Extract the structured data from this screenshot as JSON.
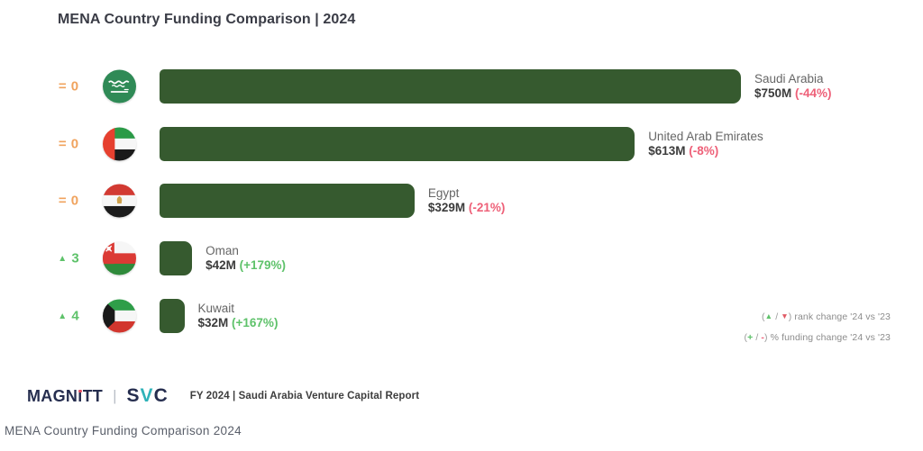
{
  "title": "MENA Country Funding Comparison | 2024",
  "chart_data": {
    "type": "bar",
    "orientation": "horizontal",
    "title": "MENA Country Funding Comparison | 2024",
    "unit": "USD millions",
    "xlim": [
      0,
      750
    ],
    "grid": false,
    "legend_position": "bottom-right",
    "categories": [
      "Saudi Arabia",
      "United Arab Emirates",
      "Egypt",
      "Oman",
      "Kuwait"
    ],
    "values": [
      750,
      613,
      329,
      42,
      32
    ],
    "rows": [
      {
        "country": "Saudi Arabia",
        "value_m": 750,
        "value_label": "$750M",
        "funding_change": "(-44%)",
        "funding_change_dir": "negative",
        "rank_change_symbol": "=",
        "rank_change_value": "0",
        "rank_change_dir": "same",
        "flag_icon": "flag-saudi-arabia-icon"
      },
      {
        "country": "United Arab Emirates",
        "value_m": 613,
        "value_label": "$613M",
        "funding_change": "(-8%)",
        "funding_change_dir": "negative",
        "rank_change_symbol": "=",
        "rank_change_value": "0",
        "rank_change_dir": "same",
        "flag_icon": "flag-united-arab-emirates-icon"
      },
      {
        "country": "Egypt",
        "value_m": 329,
        "value_label": "$329M",
        "funding_change": "(-21%)",
        "funding_change_dir": "negative",
        "rank_change_symbol": "=",
        "rank_change_value": "0",
        "rank_change_dir": "same",
        "flag_icon": "flag-egypt-icon"
      },
      {
        "country": "Oman",
        "value_m": 42,
        "value_label": "$42M",
        "funding_change": "(+179%)",
        "funding_change_dir": "positive",
        "rank_change_symbol": "▲",
        "rank_change_value": "3",
        "rank_change_dir": "up",
        "flag_icon": "flag-oman-icon"
      },
      {
        "country": "Kuwait",
        "value_m": 32,
        "value_label": "$32M",
        "funding_change": "(+167%)",
        "funding_change_dir": "positive",
        "rank_change_symbol": "▲",
        "rank_change_value": "4",
        "rank_change_dir": "up",
        "flag_icon": "flag-kuwait-icon"
      }
    ]
  },
  "legend": {
    "lines": [
      {
        "name": "rank-change-legend",
        "parts": [
          [
            "paren",
            "("
          ],
          [
            "up",
            "▲"
          ],
          [
            "paren",
            " / "
          ],
          [
            "down",
            "▼"
          ],
          [
            "paren",
            ")  "
          ],
          [
            "label",
            "rank change '24 vs '23"
          ]
        ]
      },
      {
        "name": "funding-change-legend",
        "parts": [
          [
            "paren",
            "("
          ],
          [
            "plus",
            "+"
          ],
          [
            "paren",
            " / "
          ],
          [
            "minus",
            "-"
          ],
          [
            "paren",
            ")  "
          ],
          [
            "label",
            "% funding change '24 vs '23"
          ]
        ]
      }
    ]
  },
  "footer": {
    "magnitt_prefix": "MAGN",
    "magnitt_i": "i",
    "magnitt_suffix": "TT",
    "divider": "|",
    "svc_s": "S",
    "svc_v": "V",
    "svc_c": "C",
    "report": "FY 2024 | Saudi Arabia Venture Capital Report"
  },
  "caption": "MENA Country Funding Comparison 2024",
  "colors": {
    "bar": "#365A2F",
    "negative": "#EE6078",
    "positive": "#5EC26A",
    "rank_same": "#F0A35E",
    "rank_up": "#5EC26A",
    "title_text": "#3a3c46",
    "country_text": "#666666",
    "value_text": "#3c3c3c"
  }
}
